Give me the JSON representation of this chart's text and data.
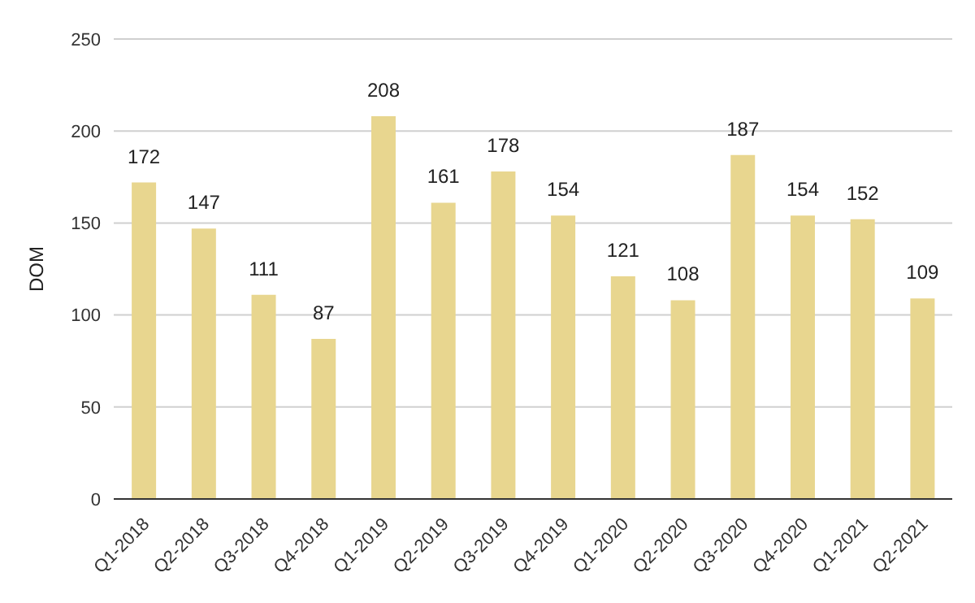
{
  "chart_data": {
    "type": "bar",
    "ylabel": "DOM",
    "categories": [
      "Q1-2018",
      "Q2-2018",
      "Q3-2018",
      "Q4-2018",
      "Q1-2019",
      "Q2-2019",
      "Q3-2019",
      "Q4-2019",
      "Q1-2020",
      "Q2-2020",
      "Q3-2020",
      "Q4-2020",
      "Q1-2021",
      "Q2-2021"
    ],
    "values": [
      172,
      147,
      111,
      87,
      208,
      161,
      178,
      154,
      121,
      108,
      187,
      154,
      152,
      109
    ],
    "color": "#e8d68f",
    "ylim": [
      0,
      250
    ],
    "yticks": [
      0,
      50,
      100,
      150,
      200,
      250
    ],
    "grid": "y",
    "data_labels": true
  }
}
